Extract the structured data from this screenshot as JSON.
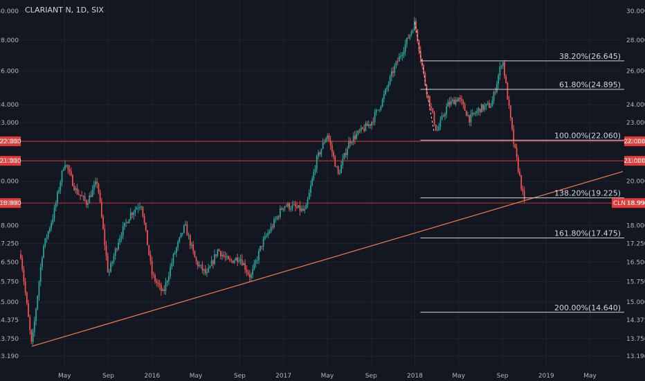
{
  "header": {
    "title": "CLARIANT N, 1D, SIX"
  },
  "colors": {
    "background": "#131722",
    "grid": "#1f2330",
    "up": "#26a69a",
    "down": "#ef5350",
    "trendline": "#f57c4b",
    "fib_line": "#d1d4dc",
    "red_line": "#e53935"
  },
  "chart_data": {
    "type": "candlestick",
    "symbol": "CLARIANT N",
    "interval": "1D",
    "exchange": "SIX",
    "x_ticks": [
      "May",
      "Sep",
      "2016",
      "May",
      "Sep",
      "2017",
      "May",
      "Sep",
      "2018",
      "May",
      "Sep",
      "2019",
      "May"
    ],
    "y_ticks": [
      "30.000",
      "28.000",
      "26.000",
      "24.000",
      "23.000",
      "22.000",
      "21.000",
      "20.000",
      "18.990",
      "18.000",
      "17.250",
      "16.500",
      "15.750",
      "15.000",
      "14.375",
      "13.750",
      "13.190"
    ],
    "y_scale": "log",
    "last_price": {
      "label": "CLN",
      "value": "18.990"
    },
    "highlighted_levels": [
      "22.000",
      "21.000"
    ],
    "fib_levels": [
      {
        "label": "38.20%(26.645)",
        "value": 26.645
      },
      {
        "label": "61.80%(24.895)",
        "value": 24.895
      },
      {
        "label": "100.00%(22.060)",
        "value": 22.06
      },
      {
        "label": "138.20%(19.225)",
        "value": 19.225
      },
      {
        "label": "161.80%(17.475)",
        "value": 17.475
      },
      {
        "label": "200.00%(14.640)",
        "value": 14.64
      }
    ],
    "trendline": [
      {
        "x": "2015-02",
        "y": 13.5
      },
      {
        "x": "2018-11",
        "y": 19.1
      }
    ],
    "price_path": [
      {
        "x": "2015-01",
        "y": 16.8
      },
      {
        "x": "2015-02",
        "y": 13.5
      },
      {
        "x": "2015-03",
        "y": 17.0
      },
      {
        "x": "2015-04",
        "y": 18.5
      },
      {
        "x": "2015-05",
        "y": 21.0
      },
      {
        "x": "2015-06",
        "y": 19.6
      },
      {
        "x": "2015-07",
        "y": 19.0
      },
      {
        "x": "2015-08",
        "y": 20.0
      },
      {
        "x": "2015-09",
        "y": 16.0
      },
      {
        "x": "2015-10",
        "y": 17.5
      },
      {
        "x": "2015-11",
        "y": 18.5
      },
      {
        "x": "2015-12",
        "y": 19.0
      },
      {
        "x": "2016-01",
        "y": 16.0
      },
      {
        "x": "2016-02",
        "y": 15.3
      },
      {
        "x": "2016-03",
        "y": 16.8
      },
      {
        "x": "2016-04",
        "y": 18.0
      },
      {
        "x": "2016-05",
        "y": 16.5
      },
      {
        "x": "2016-06",
        "y": 16.0
      },
      {
        "x": "2016-07",
        "y": 17.0
      },
      {
        "x": "2016-08",
        "y": 16.5
      },
      {
        "x": "2016-09",
        "y": 16.7
      },
      {
        "x": "2016-10",
        "y": 15.9
      },
      {
        "x": "2016-11",
        "y": 17.2
      },
      {
        "x": "2016-12",
        "y": 18.0
      },
      {
        "x": "2017-01",
        "y": 18.9
      },
      {
        "x": "2017-02",
        "y": 18.8
      },
      {
        "x": "2017-03",
        "y": 18.6
      },
      {
        "x": "2017-04",
        "y": 21.0
      },
      {
        "x": "2017-05",
        "y": 22.4
      },
      {
        "x": "2017-06",
        "y": 20.3
      },
      {
        "x": "2017-07",
        "y": 22.0
      },
      {
        "x": "2017-08",
        "y": 22.5
      },
      {
        "x": "2017-09",
        "y": 23.0
      },
      {
        "x": "2017-10",
        "y": 24.2
      },
      {
        "x": "2017-11",
        "y": 26.0
      },
      {
        "x": "2017-12",
        "y": 27.5
      },
      {
        "x": "2018-01",
        "y": 29.2
      },
      {
        "x": "2018-02",
        "y": 25.0
      },
      {
        "x": "2018-03",
        "y": 22.5
      },
      {
        "x": "2018-04",
        "y": 24.0
      },
      {
        "x": "2018-05",
        "y": 24.4
      },
      {
        "x": "2018-06",
        "y": 23.2
      },
      {
        "x": "2018-07",
        "y": 23.8
      },
      {
        "x": "2018-08",
        "y": 24.0
      },
      {
        "x": "2018-09",
        "y": 26.8
      },
      {
        "x": "2018-10",
        "y": 22.0
      },
      {
        "x": "2018-11",
        "y": 19.0
      }
    ]
  }
}
